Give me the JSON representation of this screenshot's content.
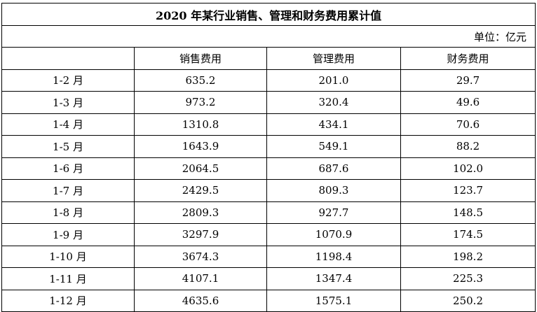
{
  "title": "2020 年某行业销售、管理和财务费用累计值",
  "unit": "单位：亿元",
  "headers": [
    "",
    "销售费用",
    "管理费用",
    "财务费用"
  ],
  "rows": [
    [
      "1-2 月",
      "635.2",
      "201.0",
      "29.7"
    ],
    [
      "1-3 月",
      "973.2",
      "320.4",
      "49.6"
    ],
    [
      "1-4 月",
      "1310.8",
      "434.1",
      "70.6"
    ],
    [
      "1-5 月",
      "1643.9",
      "549.1",
      "88.2"
    ],
    [
      "1-6 月",
      "2064.5",
      "687.6",
      "102.0"
    ],
    [
      "1-7 月",
      "2429.5",
      "809.3",
      "123.7"
    ],
    [
      "1-8 月",
      "2809.3",
      "927.7",
      "148.5"
    ],
    [
      "1-9 月",
      "3297.9",
      "1070.9",
      "174.5"
    ],
    [
      "1-10 月",
      "3674.3",
      "1198.4",
      "198.2"
    ],
    [
      "1-11 月",
      "4107.1",
      "1347.4",
      "225.3"
    ],
    [
      "1-12 月",
      "4635.6",
      "1575.1",
      "250.2"
    ]
  ]
}
